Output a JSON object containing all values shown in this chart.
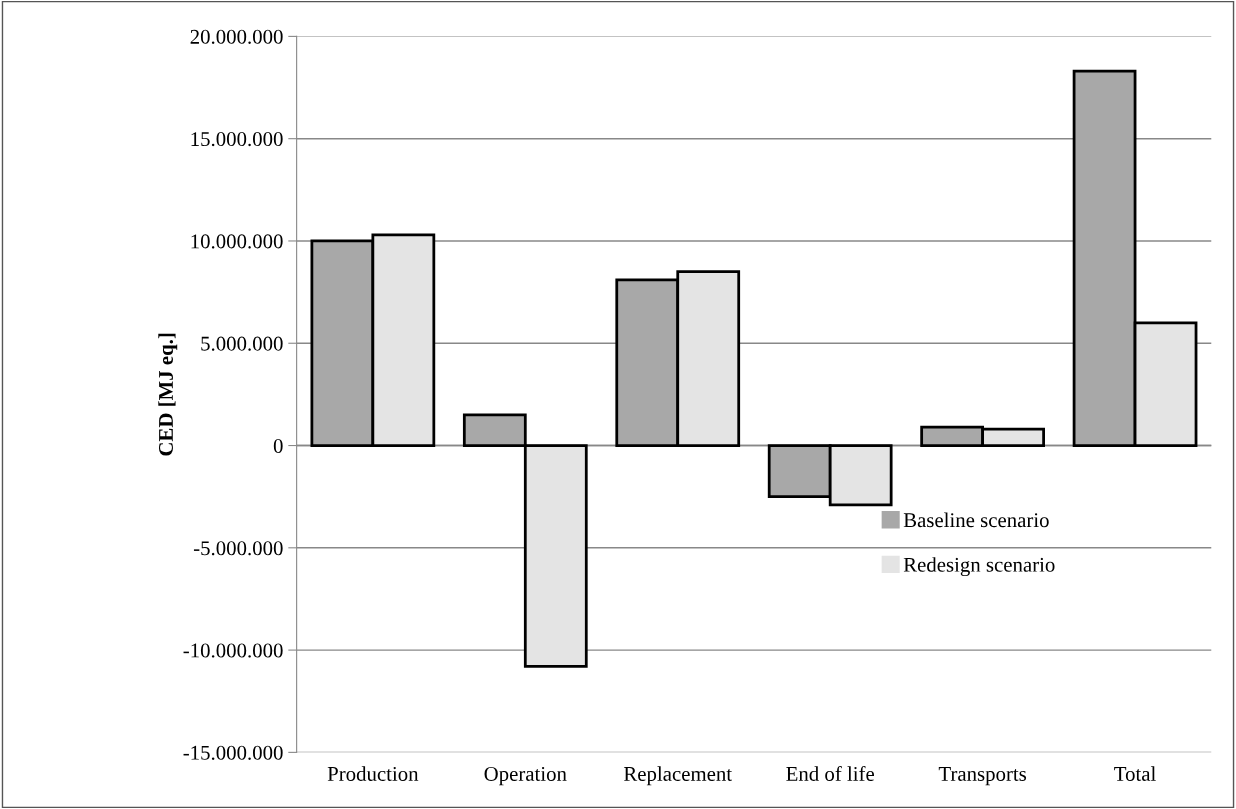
{
  "chart_data": {
    "type": "bar",
    "ylabel": "CED [MJ eq.]",
    "categories": [
      "Production",
      "Operation",
      "Replacement",
      "End of life",
      "Transports",
      "Total"
    ],
    "series": [
      {
        "name": "Baseline scenario",
        "color": "#a8a8a8",
        "values": [
          10000000,
          1500000,
          8100000,
          -2500000,
          900000,
          18300000
        ]
      },
      {
        "name": "Redesign scenario",
        "color": "#e4e4e4",
        "values": [
          10300000,
          -10800000,
          8500000,
          -2900000,
          800000,
          6000000
        ]
      }
    ],
    "ylim": [
      -15000000,
      20000000
    ],
    "yticks": [
      {
        "value": -15000000,
        "label": "-15.000.000"
      },
      {
        "value": -10000000,
        "label": "-10.000.000"
      },
      {
        "value": -5000000,
        "label": "-5.000.000"
      },
      0,
      {
        "value": 5000000,
        "label": "5.000.000"
      },
      {
        "value": 10000000,
        "label": "10.000.000"
      },
      {
        "value": 15000000,
        "label": "15.000.000"
      },
      {
        "value": 20000000,
        "label": "20.000.000"
      }
    ],
    "grid": "y",
    "legend": "bottom right"
  }
}
